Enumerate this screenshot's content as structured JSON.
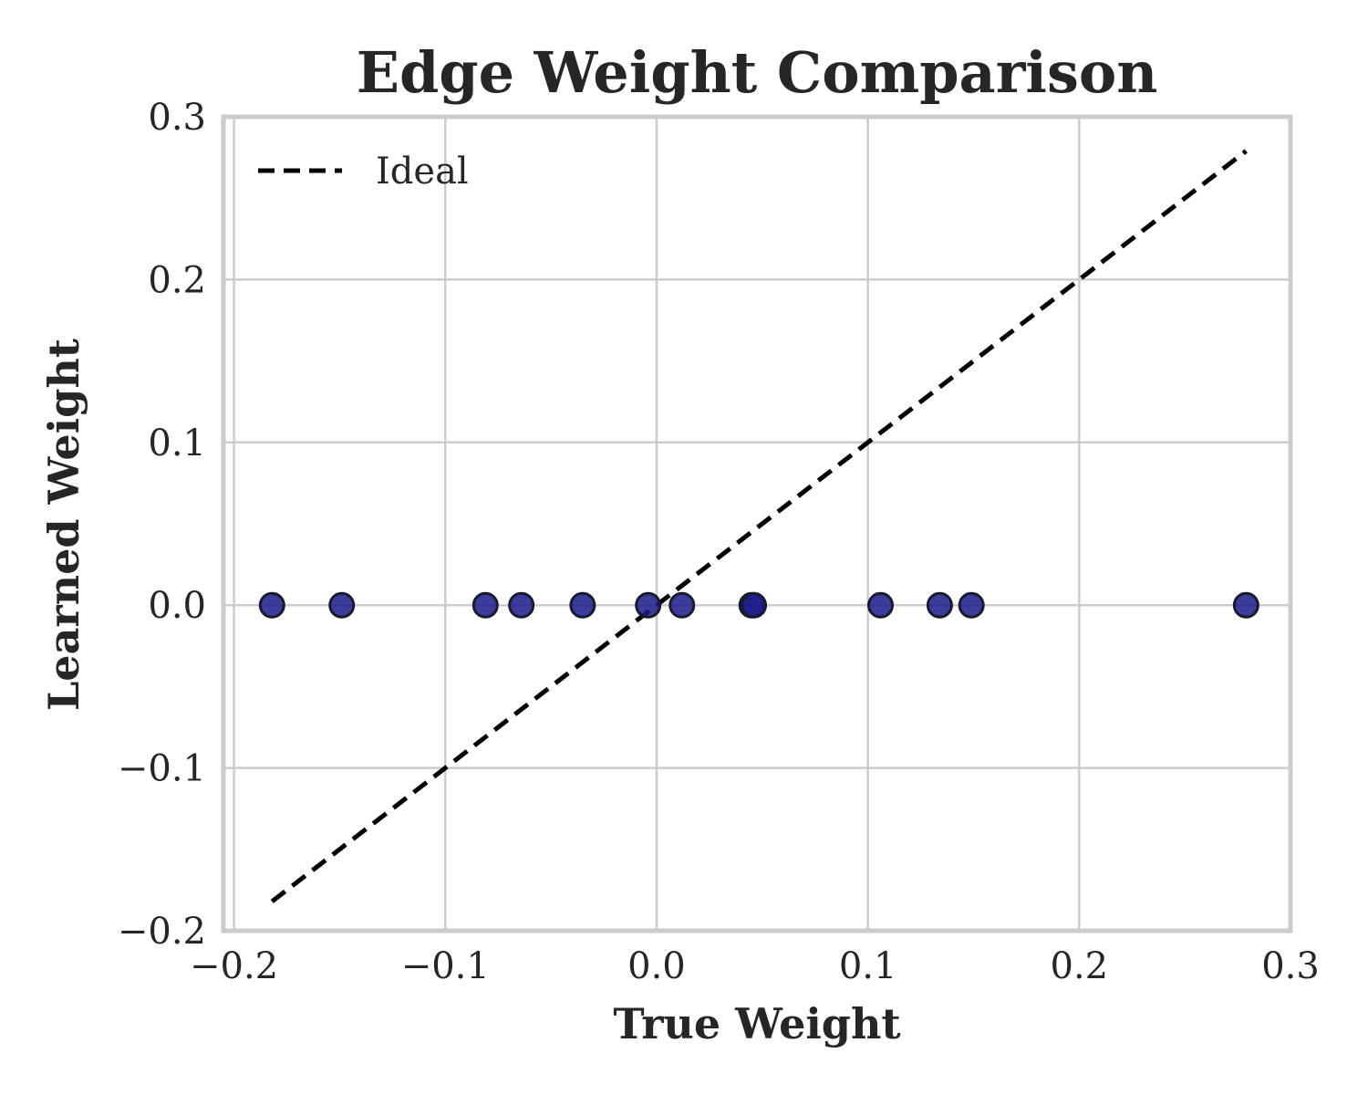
{
  "chart_data": {
    "type": "scatter",
    "title": "Edge Weight Comparison",
    "xlabel": "True Weight",
    "ylabel": "Learned Weight",
    "xlim": [
      -0.205,
      0.3
    ],
    "ylim": [
      -0.2,
      0.3
    ],
    "x_ticks": [
      -0.2,
      -0.1,
      0.0,
      0.1,
      0.2,
      0.3
    ],
    "y_ticks": [
      -0.2,
      -0.1,
      0.0,
      0.1,
      0.2,
      0.3
    ],
    "x_tick_labels": [
      "−0.2",
      "−0.1",
      "0.0",
      "0.1",
      "0.2",
      "0.3"
    ],
    "y_tick_labels": [
      "−0.2",
      "−0.1",
      "0.0",
      "0.1",
      "0.2",
      "0.3"
    ],
    "grid": true,
    "legend": {
      "placement": "top-left",
      "entries": [
        {
          "label": "Ideal",
          "style": "dashed",
          "color": "#000000"
        }
      ]
    },
    "ideal_line": {
      "name": "Ideal",
      "x": [
        -0.182,
        0.279
      ],
      "y": [
        -0.182,
        0.279
      ],
      "color": "#000000",
      "style": "dashed"
    },
    "points": {
      "color": "#1a1a8c",
      "edge_color": "#1a1a2e",
      "x": [
        -0.182,
        -0.149,
        -0.081,
        -0.064,
        -0.035,
        -0.004,
        0.012,
        0.045,
        0.046,
        0.106,
        0.134,
        0.149,
        0.279
      ],
      "y": [
        0.0,
        0.0,
        0.0,
        0.0,
        0.0,
        0.0,
        0.0,
        0.0,
        0.0,
        0.0,
        0.0,
        0.0,
        0.0
      ]
    }
  }
}
